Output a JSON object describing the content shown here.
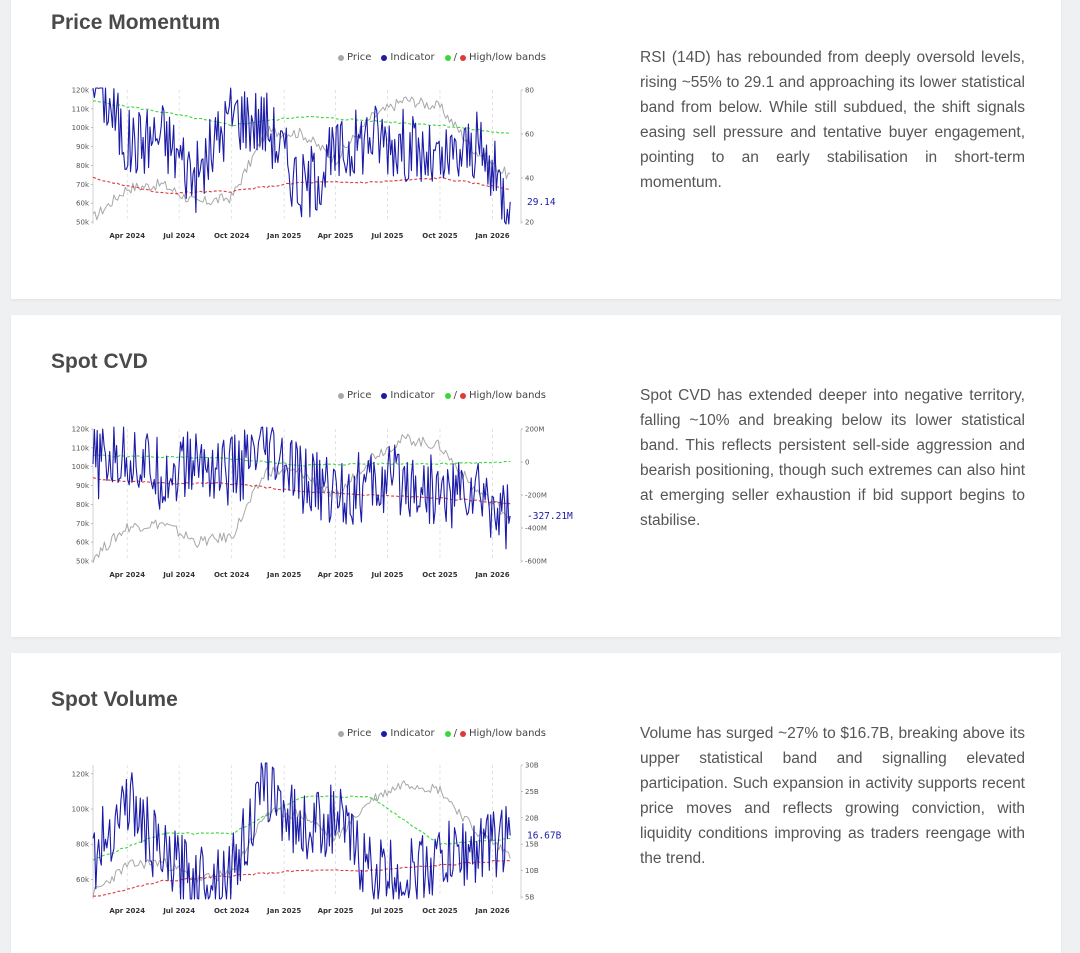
{
  "colors": {
    "price": "#a8a8a8",
    "indicator": "#1b1ba8",
    "upper_band": "#3ad83a",
    "lower_band": "#dd3a3a"
  },
  "legend": {
    "price": "Price",
    "indicator": "Indicator",
    "bands": "High/low bands",
    "bands_prefix": "/"
  },
  "sections": [
    {
      "title": "Price Momentum",
      "description": "RSI (14D) has rebounded from deeply oversold levels, rising ~55% to 29.1 and approaching its lower statistical band from below. While still subdued, the shift signals easing sell pressure and tentative buyer engagement, pointing to an early stabilisation in short-term momentum."
    },
    {
      "title": "Spot CVD",
      "description": "Spot CVD has extended deeper into negative territory, falling ~10% and breaking below its lower statistical band. This reflects persistent sell-side aggression and bearish positioning, though such extremes can also hint at emerging seller exhaustion if bid support begins to stabilise."
    },
    {
      "title": "Spot Volume",
      "description": "Volume has surged ~27% to $16.7B, breaking above its upper statistical band and signalling elevated participation. Such expansion in activity supports recent price moves and reflects growing conviction, with liquidity conditions improving as traders reengage with the trend."
    }
  ],
  "chart_data": [
    {
      "type": "line",
      "name": "Price Momentum",
      "x_ticks": [
        "Apr 2024",
        "Jul 2024",
        "Oct 2024",
        "Jan 2025",
        "Apr 2025",
        "Jul 2025",
        "Oct 2025",
        "Jan 2026"
      ],
      "left_axis": {
        "ticks": [
          "120k",
          "110k",
          "100k",
          "90k",
          "80k",
          "70k",
          "60k",
          "50k"
        ],
        "ylim": [
          50000,
          120000
        ]
      },
      "right_axis": {
        "ticks": [
          "80",
          "60",
          "40",
          "20"
        ],
        "ylim": [
          20,
          80
        ]
      },
      "last_value_label": "29.14",
      "series": [
        {
          "name": "Price",
          "x": [
            "2024-02",
            "2024-04",
            "2024-06",
            "2024-08",
            "2024-10",
            "2024-12",
            "2025-02",
            "2025-04",
            "2025-06",
            "2025-08",
            "2025-10",
            "2025-12",
            "2026-02"
          ],
          "values": [
            52000,
            68000,
            70000,
            60000,
            63000,
            98000,
            97000,
            83000,
            105000,
            115000,
            111000,
            88000,
            74000
          ]
        },
        {
          "name": "Indicator",
          "x": [
            "2024-02",
            "2024-04",
            "2024-06",
            "2024-08",
            "2024-10",
            "2024-12",
            "2025-02",
            "2025-04",
            "2025-06",
            "2025-08",
            "2025-10",
            "2025-12",
            "2026-02"
          ],
          "values": [
            90,
            55,
            60,
            40,
            70,
            65,
            35,
            50,
            60,
            55,
            45,
            55,
            29.14
          ]
        },
        {
          "name": "Upper band",
          "x": [
            "2024-02",
            "2024-06",
            "2024-10",
            "2025-02",
            "2025-06",
            "2025-10",
            "2026-02"
          ],
          "values": [
            75,
            70,
            64,
            68,
            66,
            64,
            60
          ]
        },
        {
          "name": "Lower band",
          "x": [
            "2024-02",
            "2024-06",
            "2024-10",
            "2025-02",
            "2025-06",
            "2025-10",
            "2026-02"
          ],
          "values": [
            40,
            33,
            34,
            38,
            38,
            40,
            35
          ]
        }
      ]
    },
    {
      "type": "line",
      "name": "Spot CVD",
      "x_ticks": [
        "Apr 2024",
        "Jul 2024",
        "Oct 2024",
        "Jan 2025",
        "Apr 2025",
        "Jul 2025",
        "Oct 2025",
        "Jan 2026"
      ],
      "left_axis": {
        "ticks": [
          "120k",
          "110k",
          "100k",
          "90k",
          "80k",
          "70k",
          "60k",
          "50k"
        ],
        "ylim": [
          50000,
          120000
        ]
      },
      "right_axis": {
        "ticks": [
          "200M",
          "0",
          "-200M",
          "-400M",
          "-600M"
        ],
        "ylim": [
          -600,
          200
        ]
      },
      "last_value_label": "-327.21M",
      "series": [
        {
          "name": "Price",
          "x": [
            "2024-02",
            "2024-04",
            "2024-06",
            "2024-08",
            "2024-10",
            "2024-12",
            "2025-02",
            "2025-04",
            "2025-06",
            "2025-08",
            "2025-10",
            "2025-12",
            "2026-02"
          ],
          "values": [
            52000,
            68000,
            70000,
            60000,
            63000,
            98000,
            97000,
            83000,
            105000,
            115000,
            111000,
            88000,
            74000
          ]
        },
        {
          "name": "Indicator",
          "x": [
            "2024-02",
            "2024-04",
            "2024-06",
            "2024-08",
            "2024-10",
            "2024-12",
            "2025-02",
            "2025-04",
            "2025-06",
            "2025-08",
            "2025-10",
            "2025-12",
            "2026-02"
          ],
          "values": [
            -20,
            50,
            -80,
            0,
            -60,
            40,
            -120,
            -180,
            -150,
            -100,
            -200,
            -180,
            -327.21
          ]
        },
        {
          "name": "Upper band",
          "x": [
            "2024-02",
            "2024-06",
            "2024-10",
            "2025-02",
            "2025-06",
            "2025-10",
            "2026-02"
          ],
          "values": [
            40,
            30,
            20,
            -20,
            -10,
            -10,
            0
          ]
        },
        {
          "name": "Lower band",
          "x": [
            "2024-02",
            "2024-06",
            "2024-10",
            "2025-02",
            "2025-06",
            "2025-10",
            "2026-02"
          ],
          "values": [
            -100,
            -130,
            -130,
            -180,
            -200,
            -220,
            -250
          ]
        }
      ]
    },
    {
      "type": "line",
      "name": "Spot Volume",
      "x_ticks": [
        "Apr 2024",
        "Jul 2024",
        "Oct 2024",
        "Jan 2025",
        "Apr 2025",
        "Jul 2025",
        "Oct 2025",
        "Jan 2026"
      ],
      "left_axis": {
        "ticks": [
          "120k",
          "100k",
          "80k",
          "60k"
        ],
        "ylim": [
          50000,
          125000
        ]
      },
      "right_axis": {
        "ticks": [
          "30B",
          "25B",
          "20B",
          "15B",
          "10B",
          "5B"
        ],
        "ylim": [
          5,
          30
        ]
      },
      "last_value_label": "16.67B",
      "series": [
        {
          "name": "Price",
          "x": [
            "2024-02",
            "2024-04",
            "2024-06",
            "2024-08",
            "2024-10",
            "2024-12",
            "2025-02",
            "2025-04",
            "2025-06",
            "2025-08",
            "2025-10",
            "2025-12",
            "2026-02"
          ],
          "values": [
            52000,
            68000,
            70000,
            60000,
            63000,
            98000,
            97000,
            83000,
            105000,
            115000,
            111000,
            88000,
            74000
          ]
        },
        {
          "name": "Indicator",
          "x": [
            "2024-02",
            "2024-04",
            "2024-06",
            "2024-08",
            "2024-10",
            "2024-12",
            "2025-02",
            "2025-04",
            "2025-06",
            "2025-08",
            "2025-10",
            "2025-12",
            "2026-02"
          ],
          "values": [
            12,
            24,
            12,
            9,
            10,
            26,
            18,
            20,
            10,
            9,
            12,
            14,
            16.67
          ]
        },
        {
          "name": "Upper band",
          "x": [
            "2024-02",
            "2024-06",
            "2024-10",
            "2025-02",
            "2025-06",
            "2025-10",
            "2026-02"
          ],
          "values": [
            12,
            17,
            17,
            24,
            24,
            15,
            16
          ]
        },
        {
          "name": "Lower band",
          "x": [
            "2024-02",
            "2024-06",
            "2024-10",
            "2025-02",
            "2025-06",
            "2025-10",
            "2026-02"
          ],
          "values": [
            5,
            8,
            9,
            10,
            10,
            11,
            12
          ]
        }
      ]
    }
  ]
}
